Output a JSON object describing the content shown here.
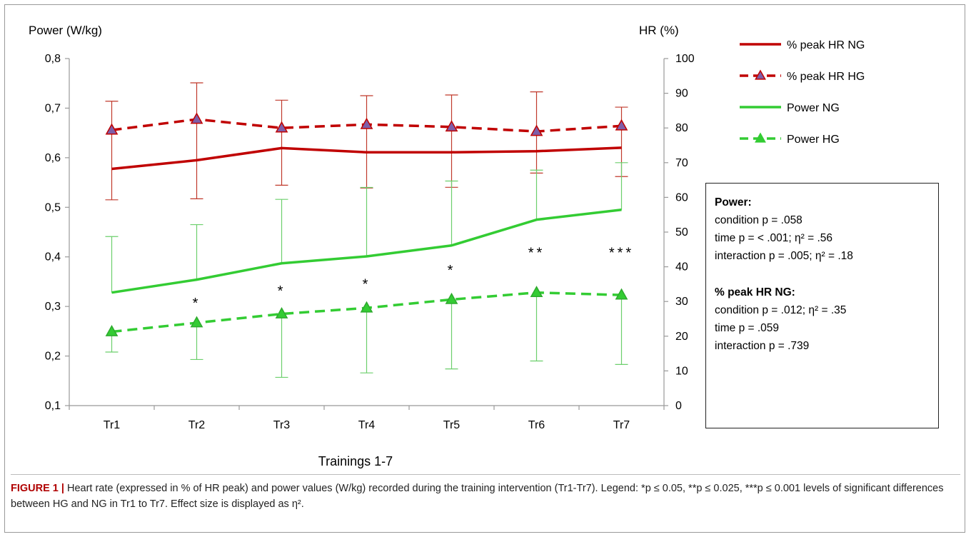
{
  "chart_data": {
    "type": "line",
    "categories": [
      "Tr1",
      "Tr2",
      "Tr3",
      "Tr4",
      "Tr5",
      "Tr6",
      "Tr7"
    ],
    "xlabel": "Trainings 1-7",
    "y_left": {
      "label": "Power (W/kg)",
      "ylim": [
        0.1,
        0.8
      ],
      "ticks": [
        "0,1",
        "0,2",
        "0,3",
        "0,4",
        "0,5",
        "0,6",
        "0,7",
        "0,8"
      ],
      "tick_values": [
        0.1,
        0.2,
        0.3,
        0.4,
        0.5,
        0.6,
        0.7,
        0.8
      ]
    },
    "y_right": {
      "label": "HR (%)",
      "ylim": [
        0,
        100
      ],
      "ticks": [
        "0",
        "10",
        "20",
        "30",
        "40",
        "50",
        "60",
        "70",
        "80",
        "90",
        "100"
      ],
      "tick_values": [
        0,
        10,
        20,
        30,
        40,
        50,
        60,
        70,
        80,
        90,
        100
      ]
    },
    "series": [
      {
        "name": "% peak HR NG",
        "axis": "right",
        "style": "solid",
        "marker": "none",
        "color": "#c00000",
        "values": [
          68.2,
          70.7,
          74.2,
          73.0,
          73.0,
          73.3,
          74.3
        ],
        "err_lo": [
          59.3,
          59.6,
          63.5,
          62.7,
          62.9,
          67.0,
          66.0
        ],
        "err_hi": [
          87.7,
          93.0,
          88.0,
          89.3,
          89.5,
          90.4,
          86.0
        ]
      },
      {
        "name": "% peak HR HG",
        "axis": "right",
        "style": "dashed",
        "marker": "triangle",
        "color": "#c00000",
        "values": [
          79.4,
          82.5,
          80.0,
          81.0,
          80.3,
          79.0,
          80.6
        ]
      },
      {
        "name": "Power NG",
        "axis": "left",
        "style": "solid",
        "marker": "none",
        "color": "#33cc33",
        "values": [
          0.328,
          0.354,
          0.387,
          0.401,
          0.423,
          0.475,
          0.495
        ],
        "err_hi": [
          0.441,
          0.465,
          0.516,
          0.54,
          0.553,
          0.575,
          0.59
        ]
      },
      {
        "name": "Power HG",
        "axis": "left",
        "style": "dashed",
        "marker": "triangle",
        "color": "#33cc33",
        "values": [
          0.249,
          0.267,
          0.285,
          0.297,
          0.314,
          0.328,
          0.323
        ],
        "err_lo": [
          0.208,
          0.193,
          0.157,
          0.166,
          0.174,
          0.19,
          0.183
        ]
      }
    ],
    "significance": [
      "",
      "*",
      "*",
      "*",
      "*",
      "**",
      "***"
    ],
    "grid": false,
    "legend_position": "top-right"
  },
  "stats_box": {
    "power_title": "Power:",
    "power_lines": [
      "condition p = .058",
      "time p = < .001; η² = .56",
      "interaction p =  .005; η² = .18"
    ],
    "hr_title": "% peak HR NG:",
    "hr_lines": [
      "condition p = .012; η² = .35",
      "time p = .059",
      "interaction p = .739"
    ]
  },
  "caption": {
    "label": "FIGURE 1 |",
    "text": " Heart rate (expressed in % of HR peak) and power values (W/kg) recorded during the training intervention (Tr1-Tr7). Legend: *p ≤ 0.05, **p ≤ 0.025, ***p ≤ 0.001 levels of significant differences between HG and NG in Tr1 to Tr7. Effect size is displayed as η²."
  }
}
